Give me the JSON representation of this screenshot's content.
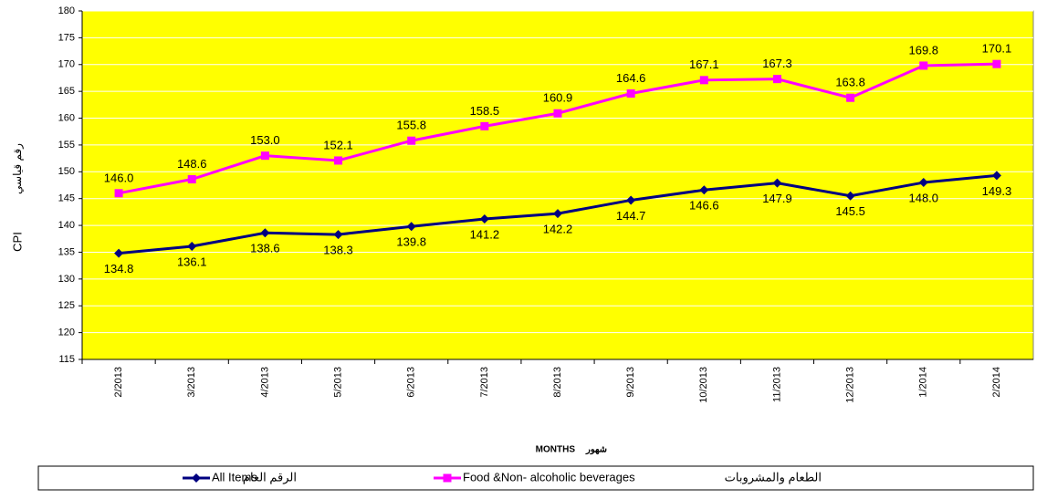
{
  "chart_data": {
    "type": "line",
    "y_label": "CPI",
    "y_label_ar": "رقم قياسي",
    "x_label": "MONTHS",
    "x_label_ar": "شهور",
    "categories": [
      "2/2013",
      "3/2013",
      "4/2013",
      "5/2013",
      "6/2013",
      "7/2013",
      "8/2013",
      "9/2013",
      "10/2013",
      "11/2013",
      "12/2013",
      "1/2014",
      "2/2014"
    ],
    "series": [
      {
        "name": "All Items",
        "name_ar": "الرقم العام",
        "color": "#000080",
        "marker": "diamond",
        "label_position": "below",
        "values": [
          134.8,
          136.1,
          138.6,
          138.3,
          139.8,
          141.2,
          142.2,
          144.7,
          146.6,
          147.9,
          145.5,
          148.0,
          149.3
        ],
        "value_labels": [
          "134.8",
          "136.1",
          "138.6",
          "138.3",
          "139.8",
          "141.2",
          "142.2",
          "144.7",
          "146.6",
          "147.9",
          "145.5",
          "148.0",
          "149.3"
        ]
      },
      {
        "name": "Food &Non- alcoholic beverages",
        "name_ar": "الطعام والمشروبات",
        "color": "#ff00ff",
        "marker": "square",
        "label_position": "above",
        "values": [
          146.0,
          148.6,
          153.0,
          152.1,
          155.8,
          158.5,
          160.9,
          164.6,
          167.1,
          167.3,
          163.8,
          169.8,
          170.1
        ],
        "value_labels": [
          "146.0",
          "148.6",
          "153.0",
          "152.1",
          "155.8",
          "158.5",
          "160.9",
          "164.6",
          "167.1",
          "167.3",
          "163.8",
          "169.8",
          "170.1"
        ]
      }
    ],
    "ylim": [
      115,
      180
    ],
    "yticks": [
      115,
      120,
      125,
      130,
      135,
      140,
      145,
      150,
      155,
      160,
      165,
      170,
      175,
      180
    ],
    "grid": true,
    "plot_background": "#ffff00",
    "legend": "bottom"
  }
}
